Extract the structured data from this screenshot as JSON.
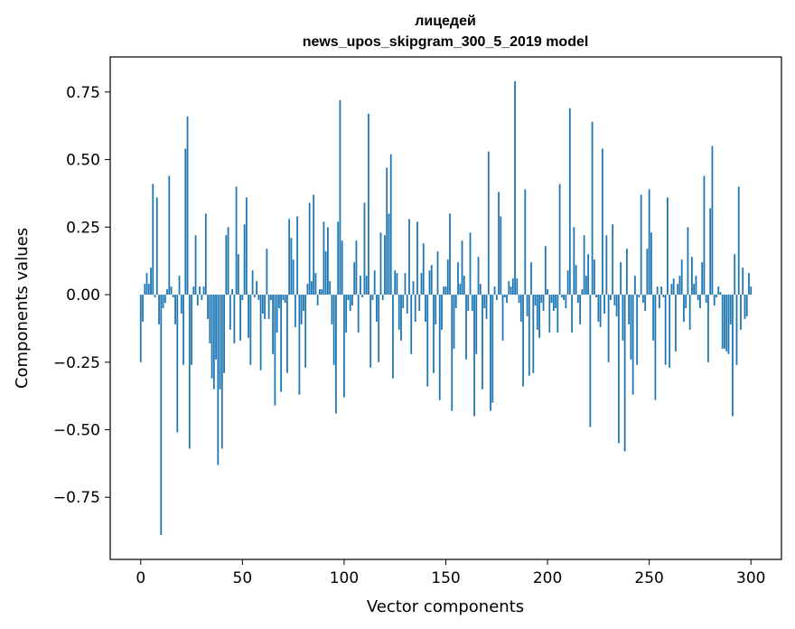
{
  "chart_data": {
    "type": "bar",
    "title": "лицедей",
    "subtitle": "news_upos_skipgram_300_5_2019 model",
    "xlabel": "Vector components",
    "ylabel": "Components values",
    "xlim": [
      -15,
      315
    ],
    "ylim": [
      -0.98,
      0.88
    ],
    "xticks": [
      0,
      50,
      100,
      150,
      200,
      250,
      300
    ],
    "yticks": [
      -0.75,
      -0.5,
      -0.25,
      0.0,
      0.25,
      0.5,
      0.75
    ],
    "xtick_labels": [
      "0",
      "50",
      "100",
      "150",
      "200",
      "250",
      "300"
    ],
    "ytick_labels": [
      "−0.75",
      "−0.50",
      "−0.25",
      "0.00",
      "0.25",
      "0.50",
      "0.75"
    ],
    "bar_color": "#1f77b4",
    "grid": false,
    "values": [
      -0.25,
      -0.1,
      0.04,
      0.08,
      0.04,
      0.1,
      0.41,
      -0.01,
      0.36,
      -0.11,
      -0.89,
      -0.05,
      -0.03,
      0.02,
      0.44,
      0.03,
      -0.01,
      -0.11,
      -0.51,
      0.07,
      -0.07,
      -0.26,
      0.54,
      0.66,
      -0.57,
      -0.26,
      0.03,
      0.22,
      -0.04,
      0.03,
      -0.02,
      0.03,
      0.3,
      -0.09,
      -0.18,
      -0.31,
      -0.35,
      -0.24,
      -0.63,
      -0.35,
      -0.57,
      -0.29,
      0.22,
      0.25,
      -0.13,
      0.02,
      -0.18,
      0.4,
      0.15,
      -0.17,
      -0.02,
      0.26,
      0.36,
      -0.16,
      -0.26,
      0.09,
      -0.01,
      0.05,
      -0.02,
      -0.28,
      -0.07,
      -0.09,
      0.17,
      -0.09,
      -0.02,
      -0.22,
      -0.41,
      -0.14,
      -0.05,
      -0.36,
      -0.02,
      -0.03,
      -0.29,
      0.28,
      0.21,
      0.13,
      -0.12,
      0.29,
      -0.37,
      -0.11,
      -0.06,
      -0.27,
      0.04,
      0.34,
      0.05,
      0.37,
      0.08,
      -0.04,
      0.02,
      0.02,
      0.27,
      0.16,
      0.25,
      0.05,
      -0.11,
      -0.26,
      -0.44,
      0.27,
      0.72,
      0.2,
      -0.38,
      -0.14,
      -0.02,
      -0.06,
      -0.04,
      0.12,
      0.2,
      -0.14,
      0.07,
      -0.01,
      0.34,
      0.07,
      0.67,
      -0.27,
      -0.02,
      0.09,
      -0.1,
      -0.25,
      0.23,
      -0.02,
      0.22,
      0.47,
      0.3,
      0.52,
      -0.31,
      0.09,
      0.08,
      -0.13,
      -0.17,
      -0.05,
      0.08,
      -0.07,
      0.28,
      -0.22,
      0.05,
      -0.1,
      0.27,
      -0.06,
      0.08,
      0.19,
      -0.1,
      -0.34,
      0.09,
      0.11,
      -0.29,
      -0.11,
      0.16,
      -0.39,
      -0.13,
      0.03,
      0.03,
      0.13,
      0.3,
      -0.43,
      -0.2,
      -0.05,
      0.12,
      0.04,
      0.2,
      0.07,
      -0.24,
      -0.06,
      0.23,
      -0.06,
      -0.45,
      -0.22,
      0.14,
      0.04,
      -0.35,
      -0.05,
      -0.09,
      0.53,
      -0.43,
      -0.4,
      0.03,
      -0.02,
      0.38,
      0.29,
      -0.17,
      -0.01,
      -0.03,
      0.05,
      0.03,
      0.06,
      0.79,
      0.06,
      -0.03,
      -0.1,
      -0.34,
      0.39,
      -0.08,
      -0.3,
      0.12,
      -0.29,
      -0.04,
      -0.13,
      -0.16,
      -0.03,
      -0.06,
      0.18,
      0.02,
      -0.14,
      -0.03,
      -0.06,
      -0.05,
      -0.14,
      0.41,
      -0.01,
      -0.02,
      -0.05,
      0.09,
      0.69,
      -0.14,
      0.25,
      0.11,
      -0.03,
      -0.11,
      0.02,
      0.22,
      0.07,
      0.15,
      -0.49,
      0.64,
      0.13,
      -0.01,
      -0.1,
      -0.12,
      0.54,
      -0.07,
      0.22,
      -0.25,
      -0.02,
      0.26,
      -0.04,
      -0.08,
      -0.55,
      0.12,
      -0.17,
      -0.58,
      0.17,
      -0.11,
      -0.24,
      -0.37,
      0.07,
      -0.26,
      -0.01,
      0.37,
      -0.03,
      -0.06,
      0.17,
      0.39,
      0.23,
      -0.17,
      -0.39,
      0.03,
      -0.05,
      0.03,
      -0.01,
      -0.26,
      0.36,
      -0.27,
      0.04,
      0.06,
      -0.21,
      0.04,
      0.07,
      0.13,
      -0.1,
      -0.05,
      0.25,
      -0.13,
      0.14,
      0.04,
      0.07,
      -0.02,
      -0.05,
      0.12,
      0.44,
      -0.03,
      -0.25,
      0.32,
      0.55,
      -0.04,
      -0.01,
      0.03,
      0.01,
      -0.2,
      -0.2,
      -0.21,
      -0.22,
      -0.11,
      -0.45,
      0.15,
      -0.26,
      0.4,
      -0.13,
      0.1,
      -0.09,
      -0.08,
      0.08,
      0.03
    ]
  }
}
